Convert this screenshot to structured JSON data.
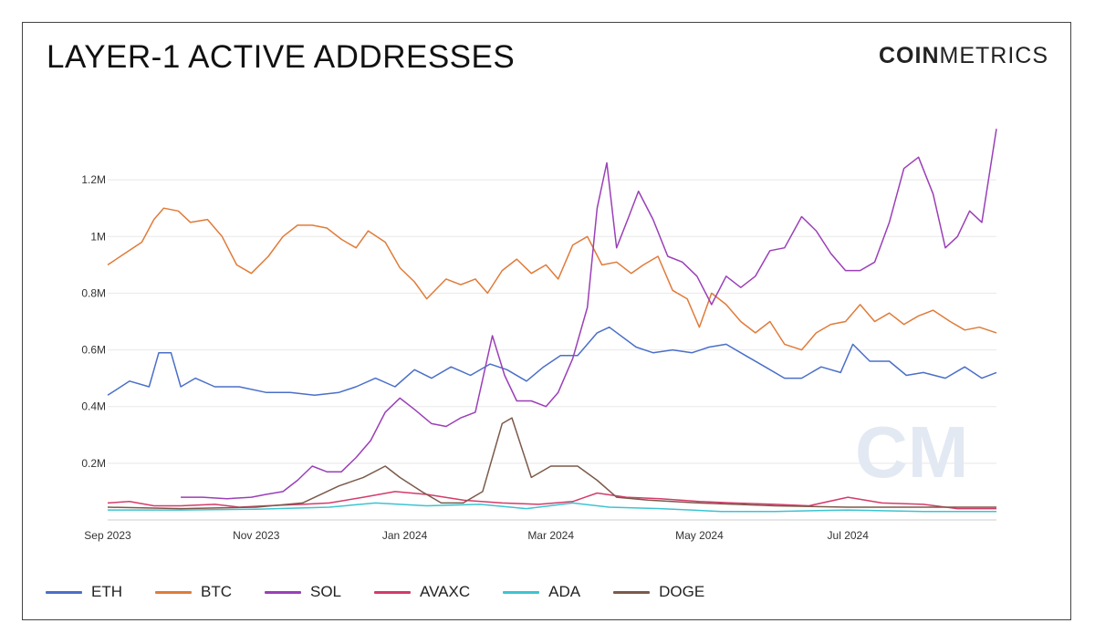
{
  "header": {
    "title": "LAYER-1 ACTIVE ADDRESSES",
    "logo_bold": "COIN",
    "logo_light": "METRICS"
  },
  "chart_data": {
    "type": "line",
    "title": "LAYER-1 ACTIVE ADDRESSES",
    "xlabel": "",
    "ylabel": "",
    "ylim": [
      0,
      1400000
    ],
    "y_ticks": [
      200000,
      400000,
      600000,
      800000,
      1000000,
      1200000
    ],
    "y_tick_labels": [
      "0.2M",
      "0.4M",
      "0.6M",
      "0.8M",
      "1M",
      "1.2M"
    ],
    "x_ticks": [
      "2023-09-01",
      "2023-11-01",
      "2024-01-01",
      "2024-03-01",
      "2024-05-01",
      "2024-07-01"
    ],
    "x_tick_labels": [
      "Sep 2023",
      "Nov 2023",
      "Jan 2024",
      "Mar 2024",
      "May 2024",
      "Jul 2024"
    ],
    "xlim": [
      "2023-09-01",
      "2024-08-31"
    ],
    "grid": "horizontal",
    "legend_position": "bottom-left",
    "series": [
      {
        "name": "ETH",
        "color": "#4a6fc9",
        "points": [
          [
            "2023-09-01",
            440000
          ],
          [
            "2023-09-10",
            490000
          ],
          [
            "2023-09-18",
            470000
          ],
          [
            "2023-09-22",
            590000
          ],
          [
            "2023-09-27",
            590000
          ],
          [
            "2023-10-01",
            470000
          ],
          [
            "2023-10-07",
            500000
          ],
          [
            "2023-10-15",
            470000
          ],
          [
            "2023-10-25",
            470000
          ],
          [
            "2023-11-05",
            450000
          ],
          [
            "2023-11-15",
            450000
          ],
          [
            "2023-11-25",
            440000
          ],
          [
            "2023-12-05",
            450000
          ],
          [
            "2023-12-12",
            470000
          ],
          [
            "2023-12-20",
            500000
          ],
          [
            "2023-12-28",
            470000
          ],
          [
            "2024-01-05",
            530000
          ],
          [
            "2024-01-12",
            500000
          ],
          [
            "2024-01-20",
            540000
          ],
          [
            "2024-01-28",
            510000
          ],
          [
            "2024-02-05",
            550000
          ],
          [
            "2024-02-12",
            530000
          ],
          [
            "2024-02-20",
            490000
          ],
          [
            "2024-02-27",
            540000
          ],
          [
            "2024-03-05",
            580000
          ],
          [
            "2024-03-12",
            580000
          ],
          [
            "2024-03-20",
            660000
          ],
          [
            "2024-03-25",
            680000
          ],
          [
            "2024-04-05",
            610000
          ],
          [
            "2024-04-12",
            590000
          ],
          [
            "2024-04-20",
            600000
          ],
          [
            "2024-04-28",
            590000
          ],
          [
            "2024-05-05",
            610000
          ],
          [
            "2024-05-12",
            620000
          ],
          [
            "2024-05-20",
            580000
          ],
          [
            "2024-05-28",
            540000
          ],
          [
            "2024-06-05",
            500000
          ],
          [
            "2024-06-12",
            500000
          ],
          [
            "2024-06-20",
            540000
          ],
          [
            "2024-06-28",
            520000
          ],
          [
            "2024-07-03",
            620000
          ],
          [
            "2024-07-10",
            560000
          ],
          [
            "2024-07-18",
            560000
          ],
          [
            "2024-07-25",
            510000
          ],
          [
            "2024-08-01",
            520000
          ],
          [
            "2024-08-10",
            500000
          ],
          [
            "2024-08-18",
            540000
          ],
          [
            "2024-08-25",
            500000
          ],
          [
            "2024-08-31",
            520000
          ]
        ]
      },
      {
        "name": "BTC",
        "color": "#e07b39",
        "points": [
          [
            "2023-09-01",
            900000
          ],
          [
            "2023-09-08",
            940000
          ],
          [
            "2023-09-15",
            980000
          ],
          [
            "2023-09-20",
            1060000
          ],
          [
            "2023-09-24",
            1100000
          ],
          [
            "2023-09-30",
            1090000
          ],
          [
            "2023-10-05",
            1050000
          ],
          [
            "2023-10-12",
            1060000
          ],
          [
            "2023-10-18",
            1000000
          ],
          [
            "2023-10-24",
            900000
          ],
          [
            "2023-10-30",
            870000
          ],
          [
            "2023-11-06",
            930000
          ],
          [
            "2023-11-12",
            1000000
          ],
          [
            "2023-11-18",
            1040000
          ],
          [
            "2023-11-24",
            1040000
          ],
          [
            "2023-11-30",
            1030000
          ],
          [
            "2023-12-06",
            990000
          ],
          [
            "2023-12-12",
            960000
          ],
          [
            "2023-12-17",
            1020000
          ],
          [
            "2023-12-24",
            980000
          ],
          [
            "2023-12-30",
            890000
          ],
          [
            "2024-01-05",
            840000
          ],
          [
            "2024-01-10",
            780000
          ],
          [
            "2024-01-18",
            850000
          ],
          [
            "2024-01-24",
            830000
          ],
          [
            "2024-01-30",
            850000
          ],
          [
            "2024-02-04",
            800000
          ],
          [
            "2024-02-10",
            880000
          ],
          [
            "2024-02-16",
            920000
          ],
          [
            "2024-02-22",
            870000
          ],
          [
            "2024-02-28",
            900000
          ],
          [
            "2024-03-04",
            850000
          ],
          [
            "2024-03-10",
            970000
          ],
          [
            "2024-03-16",
            1000000
          ],
          [
            "2024-03-22",
            900000
          ],
          [
            "2024-03-28",
            910000
          ],
          [
            "2024-04-03",
            870000
          ],
          [
            "2024-04-08",
            900000
          ],
          [
            "2024-04-14",
            930000
          ],
          [
            "2024-04-20",
            810000
          ],
          [
            "2024-04-26",
            780000
          ],
          [
            "2024-05-01",
            680000
          ],
          [
            "2024-05-06",
            800000
          ],
          [
            "2024-05-12",
            760000
          ],
          [
            "2024-05-18",
            700000
          ],
          [
            "2024-05-24",
            660000
          ],
          [
            "2024-05-30",
            700000
          ],
          [
            "2024-06-05",
            620000
          ],
          [
            "2024-06-12",
            600000
          ],
          [
            "2024-06-18",
            660000
          ],
          [
            "2024-06-24",
            690000
          ],
          [
            "2024-06-30",
            700000
          ],
          [
            "2024-07-06",
            760000
          ],
          [
            "2024-07-12",
            700000
          ],
          [
            "2024-07-18",
            730000
          ],
          [
            "2024-07-24",
            690000
          ],
          [
            "2024-07-30",
            720000
          ],
          [
            "2024-08-05",
            740000
          ],
          [
            "2024-08-12",
            700000
          ],
          [
            "2024-08-18",
            670000
          ],
          [
            "2024-08-24",
            680000
          ],
          [
            "2024-08-31",
            660000
          ]
        ]
      },
      {
        "name": "SOL",
        "color": "#9b3fb8",
        "points": [
          [
            "2023-10-01",
            80000
          ],
          [
            "2023-10-10",
            80000
          ],
          [
            "2023-10-20",
            75000
          ],
          [
            "2023-10-30",
            80000
          ],
          [
            "2023-11-05",
            90000
          ],
          [
            "2023-11-12",
            100000
          ],
          [
            "2023-11-18",
            140000
          ],
          [
            "2023-11-24",
            190000
          ],
          [
            "2023-11-30",
            170000
          ],
          [
            "2023-12-06",
            170000
          ],
          [
            "2023-12-12",
            220000
          ],
          [
            "2023-12-18",
            280000
          ],
          [
            "2023-12-24",
            380000
          ],
          [
            "2023-12-30",
            430000
          ],
          [
            "2024-01-05",
            390000
          ],
          [
            "2024-01-12",
            340000
          ],
          [
            "2024-01-18",
            330000
          ],
          [
            "2024-01-24",
            360000
          ],
          [
            "2024-01-30",
            380000
          ],
          [
            "2024-02-06",
            650000
          ],
          [
            "2024-02-11",
            510000
          ],
          [
            "2024-02-16",
            420000
          ],
          [
            "2024-02-22",
            420000
          ],
          [
            "2024-02-28",
            400000
          ],
          [
            "2024-03-04",
            450000
          ],
          [
            "2024-03-10",
            570000
          ],
          [
            "2024-03-16",
            750000
          ],
          [
            "2024-03-20",
            1100000
          ],
          [
            "2024-03-24",
            1260000
          ],
          [
            "2024-03-28",
            960000
          ],
          [
            "2024-04-02",
            1070000
          ],
          [
            "2024-04-06",
            1160000
          ],
          [
            "2024-04-12",
            1060000
          ],
          [
            "2024-04-18",
            930000
          ],
          [
            "2024-04-24",
            910000
          ],
          [
            "2024-04-30",
            860000
          ],
          [
            "2024-05-06",
            760000
          ],
          [
            "2024-05-12",
            860000
          ],
          [
            "2024-05-18",
            820000
          ],
          [
            "2024-05-24",
            860000
          ],
          [
            "2024-05-30",
            950000
          ],
          [
            "2024-06-05",
            960000
          ],
          [
            "2024-06-12",
            1070000
          ],
          [
            "2024-06-18",
            1020000
          ],
          [
            "2024-06-24",
            940000
          ],
          [
            "2024-06-30",
            880000
          ],
          [
            "2024-07-06",
            880000
          ],
          [
            "2024-07-12",
            910000
          ],
          [
            "2024-07-18",
            1050000
          ],
          [
            "2024-07-24",
            1240000
          ],
          [
            "2024-07-30",
            1280000
          ],
          [
            "2024-08-05",
            1150000
          ],
          [
            "2024-08-10",
            960000
          ],
          [
            "2024-08-15",
            1000000
          ],
          [
            "2024-08-20",
            1090000
          ],
          [
            "2024-08-25",
            1050000
          ],
          [
            "2024-08-31",
            1380000
          ]
        ]
      },
      {
        "name": "AVAXC",
        "color": "#d43b6a",
        "points": [
          [
            "2023-09-01",
            60000
          ],
          [
            "2023-09-10",
            65000
          ],
          [
            "2023-09-20",
            50000
          ],
          [
            "2023-10-01",
            50000
          ],
          [
            "2023-10-15",
            55000
          ],
          [
            "2023-10-25",
            45000
          ],
          [
            "2023-11-05",
            50000
          ],
          [
            "2023-11-20",
            55000
          ],
          [
            "2023-12-01",
            60000
          ],
          [
            "2023-12-15",
            80000
          ],
          [
            "2023-12-28",
            100000
          ],
          [
            "2024-01-10",
            90000
          ],
          [
            "2024-01-25",
            70000
          ],
          [
            "2024-02-10",
            60000
          ],
          [
            "2024-02-25",
            55000
          ],
          [
            "2024-03-10",
            65000
          ],
          [
            "2024-03-20",
            95000
          ],
          [
            "2024-04-01",
            80000
          ],
          [
            "2024-04-15",
            75000
          ],
          [
            "2024-05-01",
            65000
          ],
          [
            "2024-05-15",
            60000
          ],
          [
            "2024-06-01",
            55000
          ],
          [
            "2024-06-15",
            50000
          ],
          [
            "2024-07-01",
            80000
          ],
          [
            "2024-07-15",
            60000
          ],
          [
            "2024-08-01",
            55000
          ],
          [
            "2024-08-15",
            40000
          ],
          [
            "2024-08-31",
            40000
          ]
        ]
      },
      {
        "name": "ADA",
        "color": "#3cc4d0",
        "points": [
          [
            "2023-09-01",
            35000
          ],
          [
            "2023-10-01",
            35000
          ],
          [
            "2023-11-01",
            38000
          ],
          [
            "2023-12-01",
            45000
          ],
          [
            "2023-12-20",
            60000
          ],
          [
            "2024-01-10",
            50000
          ],
          [
            "2024-02-01",
            55000
          ],
          [
            "2024-02-20",
            40000
          ],
          [
            "2024-03-10",
            60000
          ],
          [
            "2024-03-25",
            45000
          ],
          [
            "2024-04-15",
            40000
          ],
          [
            "2024-05-10",
            30000
          ],
          [
            "2024-06-01",
            30000
          ],
          [
            "2024-07-01",
            35000
          ],
          [
            "2024-08-01",
            30000
          ],
          [
            "2024-08-31",
            30000
          ]
        ]
      },
      {
        "name": "DOGE",
        "color": "#7b5a4a",
        "points": [
          [
            "2023-09-01",
            45000
          ],
          [
            "2023-10-01",
            40000
          ],
          [
            "2023-11-01",
            45000
          ],
          [
            "2023-11-20",
            60000
          ],
          [
            "2023-12-05",
            120000
          ],
          [
            "2023-12-15",
            150000
          ],
          [
            "2023-12-24",
            190000
          ],
          [
            "2023-12-30",
            150000
          ],
          [
            "2024-01-08",
            100000
          ],
          [
            "2024-01-16",
            60000
          ],
          [
            "2024-01-25",
            60000
          ],
          [
            "2024-02-02",
            100000
          ],
          [
            "2024-02-10",
            340000
          ],
          [
            "2024-02-14",
            360000
          ],
          [
            "2024-02-22",
            150000
          ],
          [
            "2024-03-01",
            190000
          ],
          [
            "2024-03-12",
            190000
          ],
          [
            "2024-03-20",
            140000
          ],
          [
            "2024-03-28",
            80000
          ],
          [
            "2024-04-10",
            70000
          ],
          [
            "2024-05-01",
            60000
          ],
          [
            "2024-06-01",
            50000
          ],
          [
            "2024-07-01",
            45000
          ],
          [
            "2024-08-01",
            45000
          ],
          [
            "2024-08-31",
            45000
          ]
        ]
      }
    ]
  }
}
